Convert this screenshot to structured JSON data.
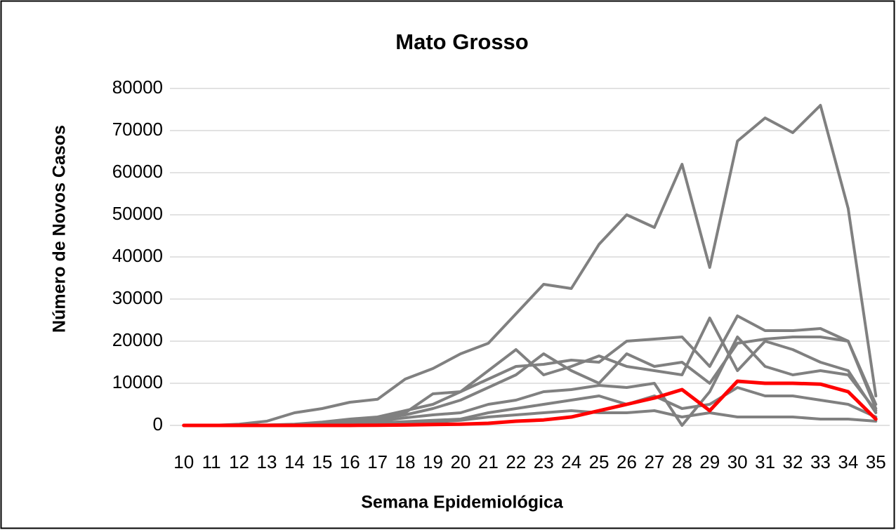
{
  "chart_data": {
    "type": "line",
    "title": "Mato Grosso",
    "x_label": "Semana Epidemiológica",
    "y_label": "Número de Novos Casos",
    "categories": [
      "10",
      "11",
      "12",
      "13",
      "14",
      "15",
      "16",
      "17",
      "18",
      "19",
      "20",
      "21",
      "22",
      "23",
      "24",
      "25",
      "26",
      "27",
      "28",
      "29",
      "30",
      "31",
      "32",
      "33",
      "34",
      "35"
    ],
    "ylim": [
      0,
      80000
    ],
    "yticks": [
      0,
      10000,
      20000,
      30000,
      40000,
      50000,
      60000,
      70000,
      80000
    ],
    "grid": true,
    "series": [
      {
        "color": "#808080",
        "values": [
          0,
          0,
          300,
          1000,
          3000,
          4000,
          5500,
          6200,
          11000,
          13500,
          17000,
          19500,
          26500,
          33500,
          32500,
          43000,
          50000,
          47000,
          62000,
          37500,
          67500,
          73000,
          69500,
          76000,
          51500,
          7000
        ]
      },
      {
        "color": "#808080",
        "values": [
          0,
          0,
          0,
          100,
          300,
          800,
          1500,
          2000,
          3500,
          5000,
          8000,
          11000,
          14000,
          14500,
          15500,
          15000,
          20000,
          20500,
          21000,
          14000,
          26000,
          22500,
          22500,
          23000,
          20000,
          4000
        ]
      },
      {
        "color": "#808080",
        "values": [
          0,
          0,
          0,
          100,
          200,
          500,
          1200,
          1800,
          3000,
          7500,
          8000,
          13000,
          18000,
          12000,
          14000,
          16500,
          14000,
          13000,
          12000,
          25500,
          13000,
          20000,
          18000,
          15000,
          13000,
          3000
        ]
      },
      {
        "color": "#808080",
        "values": [
          0,
          0,
          0,
          0,
          200,
          500,
          1000,
          1500,
          2500,
          4000,
          6000,
          9000,
          12000,
          17000,
          13000,
          10000,
          17000,
          14000,
          15000,
          10000,
          19500,
          20500,
          21000,
          21000,
          20000,
          5000
        ]
      },
      {
        "color": "#808080",
        "values": [
          0,
          0,
          0,
          0,
          100,
          300,
          700,
          1000,
          1800,
          2500,
          3000,
          5000,
          6000,
          8000,
          8500,
          9500,
          9000,
          10000,
          0,
          8000,
          21000,
          14000,
          12000,
          13000,
          12000,
          3500
        ]
      },
      {
        "color": "#808080",
        "values": [
          0,
          0,
          0,
          0,
          100,
          200,
          400,
          600,
          900,
          1200,
          1500,
          3000,
          4000,
          5000,
          6000,
          7000,
          5000,
          7000,
          4000,
          5000,
          9000,
          7000,
          7000,
          6000,
          5000,
          2000
        ]
      },
      {
        "color": "#808080",
        "values": [
          0,
          0,
          0,
          0,
          0,
          100,
          200,
          300,
          500,
          800,
          1200,
          2000,
          2500,
          3000,
          3500,
          3000,
          3000,
          3500,
          2000,
          3000,
          2000,
          2000,
          2000,
          1500,
          1500,
          1000
        ]
      },
      {
        "color": "#ff0000",
        "values": [
          0,
          0,
          0,
          0,
          0,
          0,
          0,
          50,
          100,
          200,
          300,
          500,
          1000,
          1300,
          2000,
          3500,
          5000,
          6500,
          8500,
          3500,
          10500,
          10000,
          10000,
          9800,
          8000,
          1500
        ]
      }
    ]
  }
}
